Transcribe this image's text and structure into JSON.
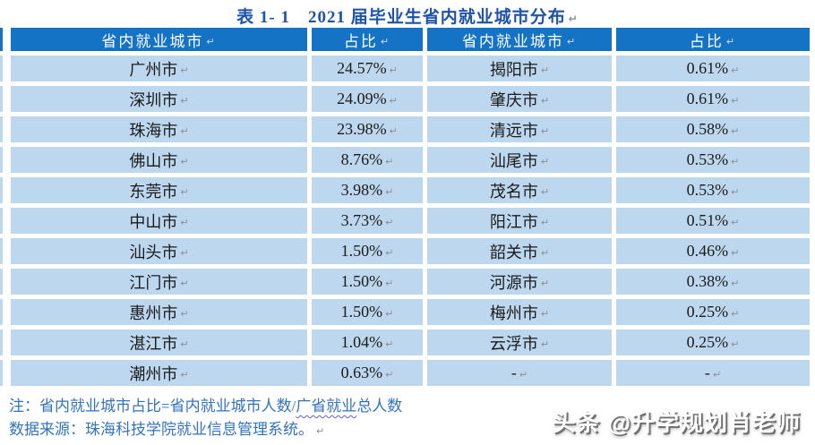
{
  "title": {
    "text": "表 1- 1　2021 届毕业生省内就业城市分布"
  },
  "table": {
    "headers": [
      "省内就业城市",
      "占比",
      "省内就业城市",
      "占比"
    ],
    "rows": [
      [
        "广州市",
        "24.57%",
        "揭阳市",
        "0.61%"
      ],
      [
        "深圳市",
        "24.09%",
        "肇庆市",
        "0.61%"
      ],
      [
        "珠海市",
        "23.98%",
        "清远市",
        "0.58%"
      ],
      [
        "佛山市",
        "8.76%",
        "汕尾市",
        "0.53%"
      ],
      [
        "东莞市",
        "3.98%",
        "茂名市",
        "0.53%"
      ],
      [
        "中山市",
        "3.73%",
        "阳江市",
        "0.51%"
      ],
      [
        "汕头市",
        "1.50%",
        "韶关市",
        "0.46%"
      ],
      [
        "江门市",
        "1.50%",
        "河源市",
        "0.38%"
      ],
      [
        "惠州市",
        "1.50%",
        "梅州市",
        "0.25%"
      ],
      [
        "湛江市",
        "1.04%",
        "云浮市",
        "0.25%"
      ],
      [
        "潮州市",
        "0.63%",
        "-",
        "-"
      ]
    ]
  },
  "notes": {
    "line1_prefix": "注：省内就业城市占比=省内就业城市人数/",
    "line1_underlined": "广省就业",
    "line1_suffix": "总人数",
    "line2": "数据来源：珠海科技学院就业信息管理系统。"
  },
  "watermark": {
    "text": "头条 @升学规划肖老师"
  },
  "marks": {
    "cell_end": "↵",
    "paragraph": "↵"
  },
  "colors": {
    "header_bg": "#1573c5",
    "row_bg": "#bdd7ee",
    "title_text": "#1d53a8",
    "note_text": "#3273c0",
    "squiggle": "#6b5bd6"
  }
}
